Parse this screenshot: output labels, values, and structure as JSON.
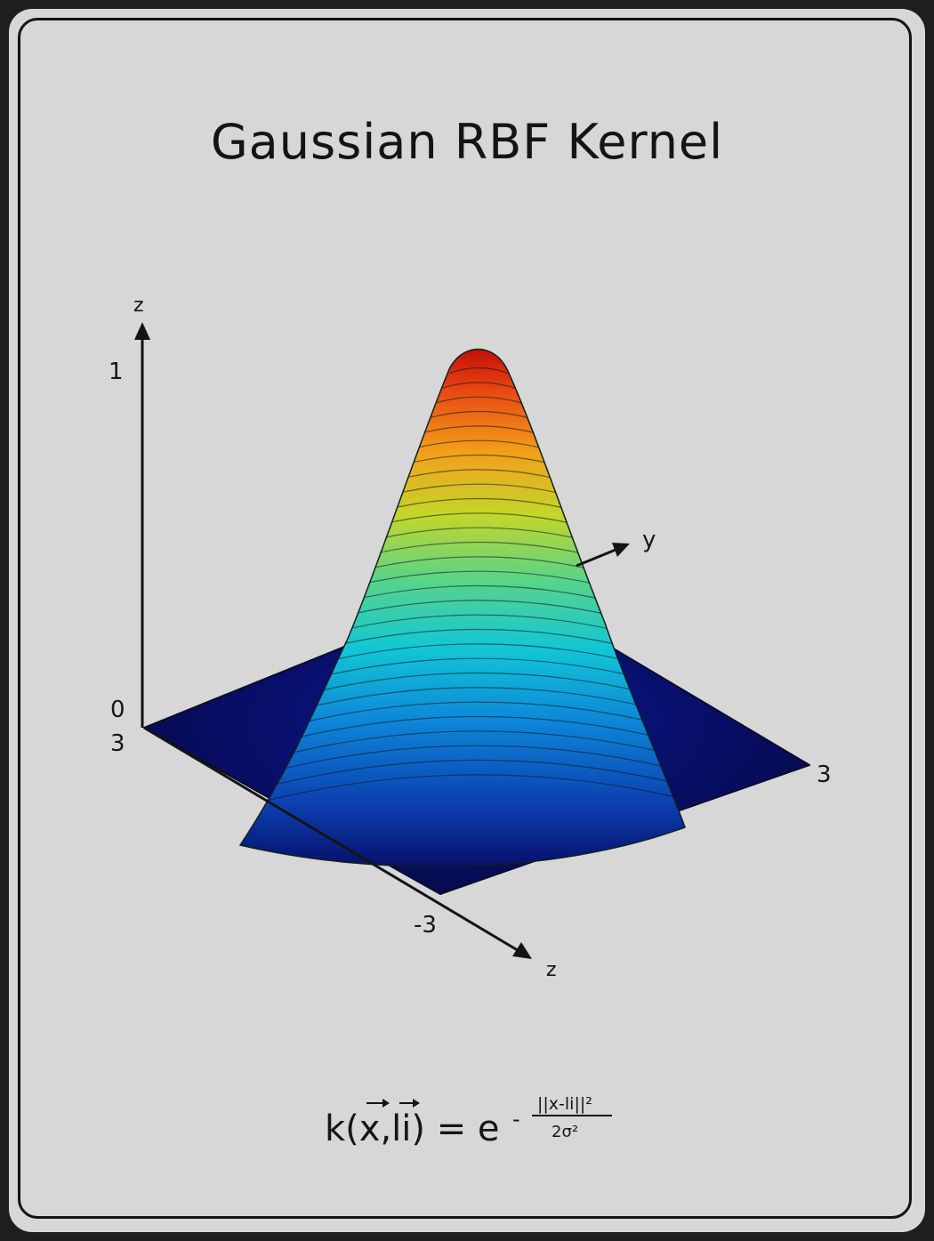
{
  "title": "Gaussian RBF Kernel",
  "axes": {
    "z_label": "z",
    "z_max": "1",
    "z_min": "0",
    "y_label": "y",
    "x_label": "z",
    "corner_left": "3",
    "corner_front": "-3",
    "corner_right": "3"
  },
  "formula": {
    "lhs": "k(x,li) = e",
    "exponent_sign": "-",
    "numerator": "||x-li||²",
    "denominator": "2σ²"
  },
  "colors": {
    "background": "#d7d7d7",
    "frame": "#1e1e1e",
    "surface_low": "#0a0a5a",
    "surface_high": "#d01000"
  }
}
